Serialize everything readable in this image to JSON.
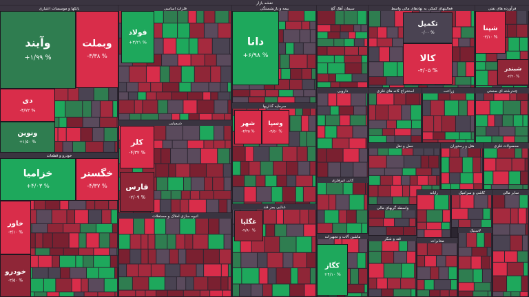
{
  "chart_data": {
    "type": "treemap",
    "title": "نقشه بازار",
    "sectors": [
      {
        "name": "بانکها و موسسات اعتباری",
        "tiles": [
          {
            "name": "وآیند",
            "value": 1.99,
            "value_label": "+۱/۹۹ %"
          },
          {
            "name": "وبملت",
            "value": -3.38,
            "value_label": "-۳/۳۸ %"
          },
          {
            "name": "دی",
            "value": -4.72,
            "value_label": "-۴/۷۲ %"
          },
          {
            "name": "ونوین",
            "value": 1.5,
            "value_label": "+۱/۵۰ %"
          }
        ]
      },
      {
        "name": "خودرو و قطعات",
        "tiles": [
          {
            "name": "خزامیا",
            "value": 4.03,
            "value_label": "+۴/۰۳ %"
          },
          {
            "name": "خگستر",
            "value": -4.37,
            "value_label": "-۴/۳۷ %"
          },
          {
            "name": "خاور",
            "value": -3.1,
            "value_label": "-۳/۱۰ %"
          },
          {
            "name": "خودرو",
            "value": -2.5,
            "value_label": "-۲/۵۰ %"
          }
        ]
      },
      {
        "name": "فلزات اساسی",
        "tiles": [
          {
            "name": "فولاد",
            "value": 3.21,
            "value_label": "+۳/۲۱ %"
          }
        ]
      },
      {
        "name": "شیمیایی",
        "tiles": [
          {
            "name": "کلر",
            "value": -4.32,
            "value_label": "-۴/۳۲ %"
          },
          {
            "name": "فارس",
            "value": -2.09,
            "value_label": "-۲/۰۹ %"
          }
        ]
      },
      {
        "name": "انبوه سازی املاک و مستغلات",
        "tiles": []
      },
      {
        "name": "بیمه و بازنشستگی",
        "tiles": [
          {
            "name": "دانا",
            "value": 6.98,
            "value_label": "+۶/۹۸ %"
          }
        ]
      },
      {
        "name": "سرمایه گذاریها",
        "tiles": [
          {
            "name": "شهر",
            "value": -3.25,
            "value_label": "-۳/۲۵ %"
          },
          {
            "name": "وسپا",
            "value": -3.5,
            "value_label": "-۳/۵۰ %"
          }
        ]
      },
      {
        "name": "غذایی بجز قند",
        "tiles": [
          {
            "name": "غگلپا",
            "value": -2.8,
            "value_label": "-۲/۸۰ %"
          }
        ]
      },
      {
        "name": "سیمان آهک گچ",
        "tiles": []
      },
      {
        "name": "فعالیتهای کمکی به نهادهای مالی واسط",
        "tiles": [
          {
            "name": "تکمیل",
            "value": 0,
            "value_label": "۰/۰۰ %"
          },
          {
            "name": "کالا",
            "value": -4.05,
            "value_label": "-۴/۰۵ %"
          }
        ]
      },
      {
        "name": "فرآورده های نفتی",
        "tiles": [
          {
            "name": "شپنا",
            "value": -3.1,
            "value_label": "-۳/۱۰ %"
          },
          {
            "name": "شبندر",
            "value": -2.4,
            "value_label": "-۲/۴۰ %"
          }
        ]
      },
      {
        "name": "دارویی",
        "tiles": []
      },
      {
        "name": "استخراج کانه های فلزی",
        "tiles": []
      },
      {
        "name": "زراعت",
        "tiles": []
      },
      {
        "name": "چندرشته ای صنعتی",
        "tiles": []
      },
      {
        "name": "کانی غیرفلزی",
        "tiles": []
      },
      {
        "name": "ماشین آلات و تجهیزات",
        "tiles": [
          {
            "name": "کگاز",
            "value": 4.1,
            "value_label": "+۴/۱۰ %"
          }
        ]
      },
      {
        "name": "حمل و نقل",
        "tiles": []
      },
      {
        "name": "هتل و رستوران",
        "tiles": []
      },
      {
        "name": "محصولات فلزی",
        "tiles": []
      },
      {
        "name": "واسطه گریهای مالی",
        "tiles": []
      },
      {
        "name": "رایانه",
        "tiles": []
      },
      {
        "name": "کاشی و سرامیک",
        "tiles": []
      },
      {
        "name": "قند و شکر",
        "tiles": []
      },
      {
        "name": "مخابرات",
        "tiles": []
      },
      {
        "name": "لاستیک",
        "tiles": []
      },
      {
        "name": "سایر مالی",
        "tiles": []
      }
    ]
  }
}
